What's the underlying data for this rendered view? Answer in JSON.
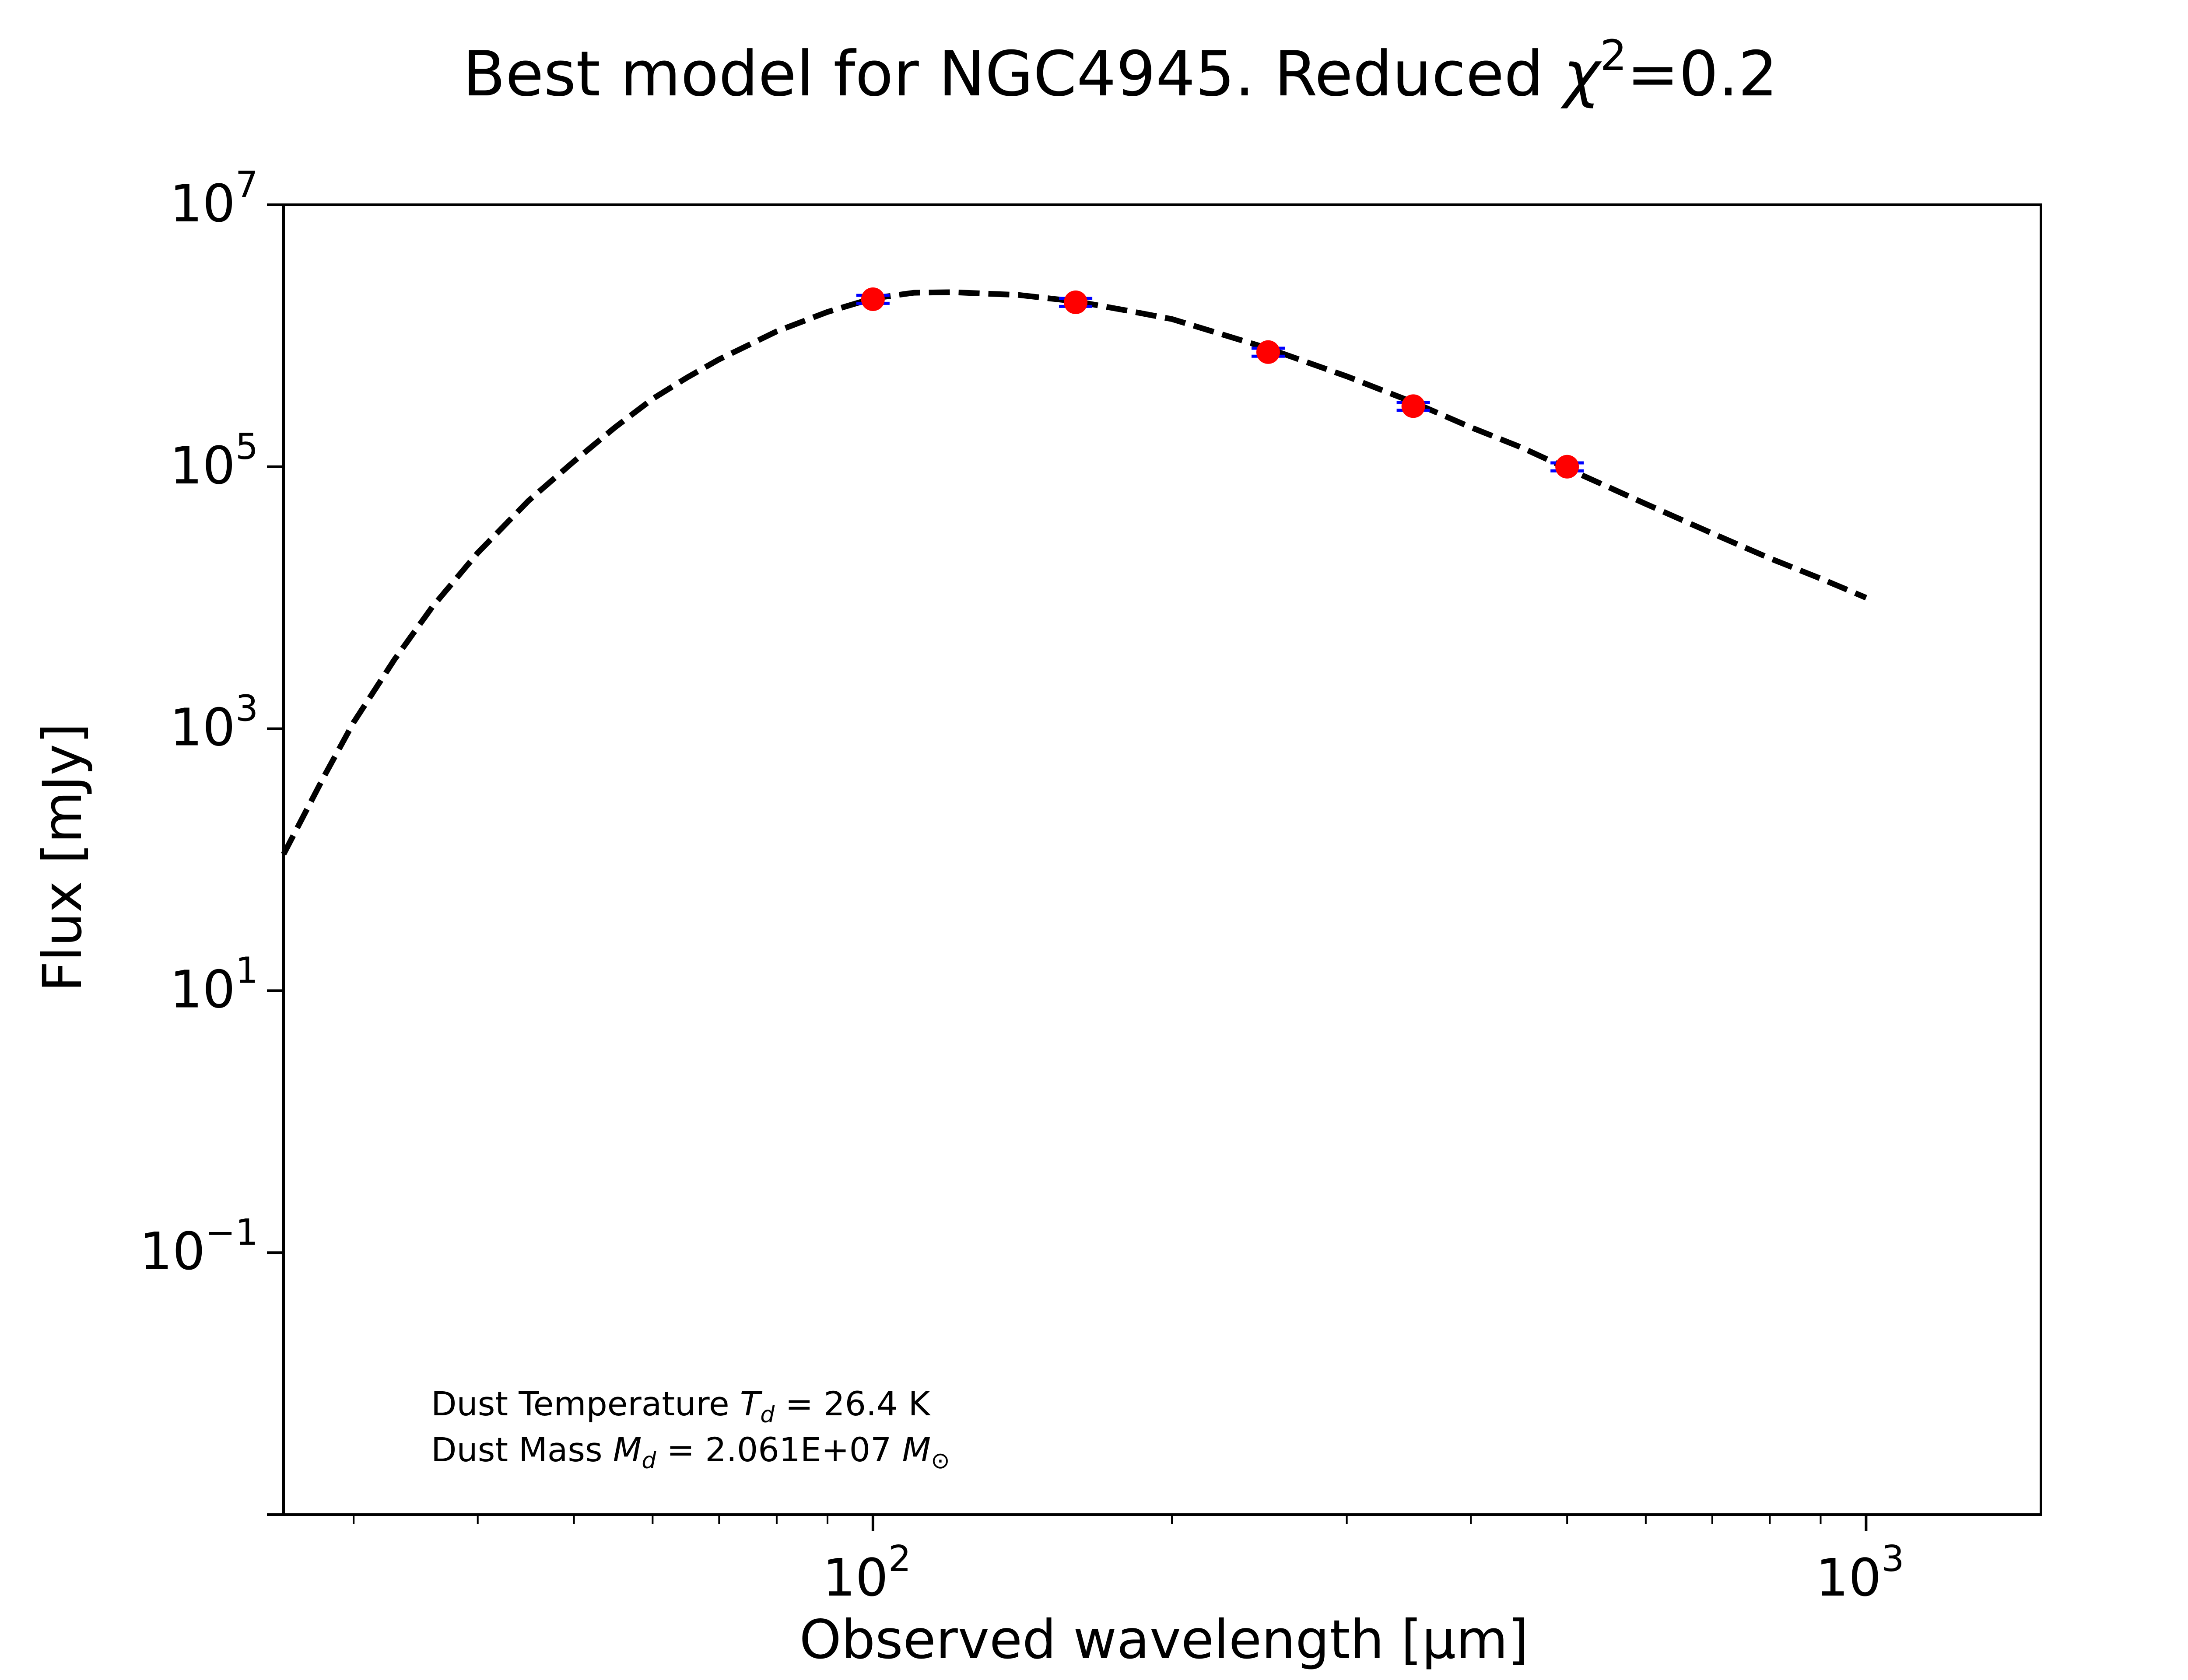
{
  "chart_data": {
    "type": "line",
    "title": "Best model for NGC4945. Reduced χ²=0.2",
    "title_parts": {
      "prefix": "Best model for NGC4945. Reduced ",
      "chi": "χ",
      "power": "2",
      "suffix": "=0.2"
    },
    "xlabel": "Observed wavelength [μm]",
    "ylabel": "Flux [mJy]",
    "xscale": "log",
    "yscale": "log",
    "xlim": [
      25.5,
      1500
    ],
    "ylim": [
      0.001,
      10000000
    ],
    "x_ticks": [
      {
        "base": "10",
        "exp": "2",
        "value": 100
      },
      {
        "base": "10",
        "exp": "3",
        "value": 1000
      }
    ],
    "y_ticks": [
      {
        "base": "10",
        "exp": "−1",
        "value": 0.1
      },
      {
        "base": "10",
        "exp": "1",
        "value": 10
      },
      {
        "base": "10",
        "exp": "3",
        "value": 1000
      },
      {
        "base": "10",
        "exp": "5",
        "value": 100000
      },
      {
        "base": "10",
        "exp": "7",
        "value": 10000000
      }
    ],
    "model": {
      "style": "dashed",
      "color": "#000000",
      "x": [
        25.5,
        28,
        30,
        33,
        36,
        40,
        45,
        50,
        55,
        60,
        65,
        70,
        80,
        90,
        100,
        110,
        120,
        140,
        160,
        180,
        200,
        250,
        300,
        350,
        400,
        450,
        500,
        600,
        700,
        800,
        900,
        1000
      ],
      "y": [
        110,
        430,
        1120,
        3400,
        8500,
        22000,
        55000,
        110000,
        200000,
        330000,
        480000,
        660000,
        1080000,
        1520000,
        1930000,
        2130000,
        2150000,
        2050000,
        1830000,
        1560000,
        1340000,
        800000,
        490000,
        310000,
        200000,
        140000,
        97000,
        52000,
        31000,
        20000,
        14000,
        10000
      ]
    },
    "observations": {
      "marker_color": "#ff0000",
      "errorbar_color": "#0000ff",
      "x": [
        100,
        160,
        250,
        350,
        500
      ],
      "y": [
        1900000,
        1800000,
        750000,
        290000,
        100000
      ],
      "yerr_fraction": [
        0.07,
        0.07,
        0.07,
        0.07,
        0.07
      ]
    },
    "annotation": {
      "line1_prefix": "Dust Temperature ",
      "line1_var": "T",
      "line1_sub": "d",
      "line1_value": " = 26.4 K",
      "line2_prefix": "Dust Mass ",
      "line2_var": "M",
      "line2_sub": "d",
      "line2_value": " = 2.061E+07 ",
      "line2_unit": "M",
      "line2_unit_sub": "⊙"
    },
    "grid": false,
    "legend": "none"
  }
}
